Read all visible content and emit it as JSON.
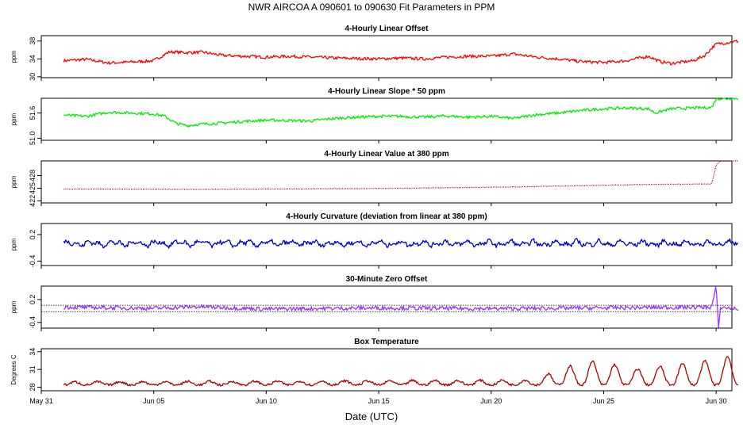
{
  "figure": {
    "title": "NWR   AIRCOA A   090601 to 090630   Fit Parameters in PPM",
    "xlabel": "Date (UTC)"
  },
  "chart_data": [
    {
      "type": "line",
      "title": "4-Hourly Linear Offset",
      "ylabel": "ppm",
      "ylim": [
        29.8,
        39.2
      ],
      "yticks": [
        30,
        34,
        38
      ],
      "xlim": [
        0,
        30.7
      ],
      "xticks": [
        "May 31",
        "Jun 05",
        "Jun 10",
        "Jun 15",
        "Jun 20",
        "Jun 25",
        "Jun 30"
      ],
      "series": [
        {
          "color": "#ff0000",
          "start": 1,
          "step": 0.1667,
          "points": [
            [
              1,
              33.6
            ],
            [
              2,
              33.9
            ],
            [
              3,
              33.1
            ],
            [
              4,
              33.3
            ],
            [
              5,
              33.6
            ],
            [
              5.7,
              35.6
            ],
            [
              6.5,
              35.4
            ],
            [
              7.2,
              35.5
            ],
            [
              8,
              34.8
            ],
            [
              9,
              34.6
            ],
            [
              10,
              34.4
            ],
            [
              11,
              34.6
            ],
            [
              12,
              34.4
            ],
            [
              13,
              34.2
            ],
            [
              14,
              34.1
            ],
            [
              15,
              34.0
            ],
            [
              16,
              34.2
            ],
            [
              17,
              34.0
            ],
            [
              18,
              34.4
            ],
            [
              19,
              34.6
            ],
            [
              20,
              34.6
            ],
            [
              21,
              35.1
            ],
            [
              22,
              34.4
            ],
            [
              23,
              34.0
            ],
            [
              24,
              33.4
            ],
            [
              25,
              33.2
            ],
            [
              26,
              33.6
            ],
            [
              27,
              34.6
            ],
            [
              27.5,
              33.4
            ],
            [
              28,
              33.0
            ],
            [
              29,
              33.6
            ],
            [
              29.5,
              34.8
            ],
            [
              29.8,
              36.4
            ],
            [
              30,
              37.3
            ],
            [
              31,
              38.0
            ]
          ],
          "noise": 0.35
        }
      ]
    },
    {
      "type": "line",
      "title": "4-Hourly Linear Slope * 50 ppm",
      "ylabel": "ppm",
      "ylim": [
        50.95,
        51.95
      ],
      "yticks": [
        "51.0",
        "51.6"
      ],
      "series": [
        {
          "color": "#00ee00",
          "points": [
            [
              1,
              51.55
            ],
            [
              2,
              51.52
            ],
            [
              3,
              51.62
            ],
            [
              4,
              51.6
            ],
            [
              5,
              51.58
            ],
            [
              5.5,
              51.52
            ],
            [
              6,
              51.35
            ],
            [
              6.5,
              51.3
            ],
            [
              7,
              51.33
            ],
            [
              8,
              51.36
            ],
            [
              9,
              51.4
            ],
            [
              10,
              51.43
            ],
            [
              11,
              51.42
            ],
            [
              12,
              51.41
            ],
            [
              13,
              51.47
            ],
            [
              14,
              51.5
            ],
            [
              15,
              51.52
            ],
            [
              16,
              51.52
            ],
            [
              17,
              51.5
            ],
            [
              18,
              51.53
            ],
            [
              19,
              51.5
            ],
            [
              20,
              51.52
            ],
            [
              21,
              51.47
            ],
            [
              22,
              51.56
            ],
            [
              23,
              51.6
            ],
            [
              24,
              51.66
            ],
            [
              25,
              51.7
            ],
            [
              26,
              51.72
            ],
            [
              27,
              51.7
            ],
            [
              27.3,
              51.6
            ],
            [
              28,
              51.7
            ],
            [
              29,
              51.72
            ],
            [
              29.8,
              51.73
            ],
            [
              30,
              51.94
            ],
            [
              31,
              51.95
            ]
          ],
          "noise": 0.035
        }
      ]
    },
    {
      "type": "scatter",
      "title": "4-Hourly Linear Value at 380 ppm",
      "ylabel": "ppm",
      "ylim": [
        421.5,
        431.5
      ],
      "yticks": [
        422,
        425,
        428
      ],
      "series": [
        {
          "color": "#990000",
          "points": [
            [
              1,
              424.8
            ],
            [
              3,
              424.8
            ],
            [
              7,
              424.7
            ],
            [
              10,
              424.8
            ],
            [
              14,
              424.9
            ],
            [
              18,
              425.1
            ],
            [
              21,
              425.3
            ],
            [
              24,
              425.6
            ],
            [
              27,
              425.9
            ],
            [
              29.8,
              426.0
            ],
            [
              30,
              430.5
            ],
            [
              30.2,
              431.5
            ]
          ],
          "noise": 0.05
        }
      ]
    },
    {
      "type": "line",
      "title": "4-Hourly Curvature (deviation from linear at 380 ppm)",
      "ylabel": "ppm",
      "ylim": [
        -0.5,
        0.45
      ],
      "yticks": [
        "-0.4",
        "0.2"
      ],
      "series": [
        {
          "color": "#0000cc",
          "points": [
            [
              1,
              0.0
            ],
            [
              31,
              0.0
            ]
          ],
          "noise": 0.045,
          "wiggle": 0.07
        }
      ]
    },
    {
      "type": "line",
      "title": "30-Minute Zero Offset",
      "ylabel": "ppm",
      "ylim": [
        -0.55,
        0.55
      ],
      "yticks": [
        "-0.4",
        "0.2"
      ],
      "ref_lines": [
        0.05,
        -0.12
      ],
      "series": [
        {
          "color": "#9933ff",
          "points": [
            [
              1,
              0.0
            ],
            [
              5,
              -0.03
            ],
            [
              7,
              0.01
            ],
            [
              10,
              -0.05
            ],
            [
              15,
              -0.02
            ],
            [
              20,
              -0.04
            ],
            [
              25,
              -0.02
            ],
            [
              29.8,
              0.0
            ],
            [
              30,
              0.55
            ],
            [
              30.1,
              -0.55
            ],
            [
              30.2,
              0.0
            ],
            [
              31,
              -0.05
            ]
          ],
          "noise": 0.055
        }
      ]
    },
    {
      "type": "line",
      "title": "Box Temperature",
      "ylabel": "Degrees C",
      "ylim": [
        27.4,
        34.5
      ],
      "yticks": [
        28,
        31,
        34
      ],
      "series": [
        {
          "color": "#aa0000",
          "points": [
            [
              1,
              28.4
            ],
            [
              31,
              28.4
            ]
          ],
          "diurnal": [
            [
              1,
              0.5
            ],
            [
              22,
              0.8
            ],
            [
              23,
              2.8
            ],
            [
              25,
              4.3
            ],
            [
              26,
              2.5
            ],
            [
              28,
              3.3
            ],
            [
              29,
              3.8
            ],
            [
              30,
              4.2
            ],
            [
              31,
              5.3
            ]
          ],
          "noise": 0.2
        }
      ]
    }
  ]
}
